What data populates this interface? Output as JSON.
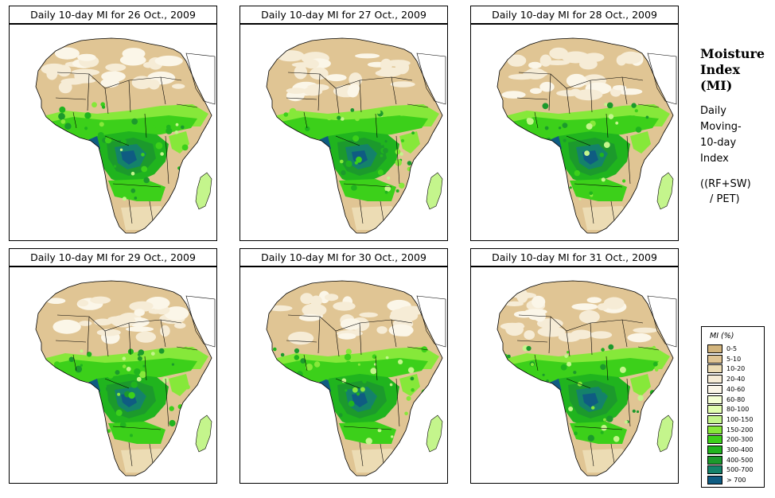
{
  "panels": [
    {
      "title": "Daily 10-day MI for  26 Oct., 2009"
    },
    {
      "title": "Daily 10-day MI for  27 Oct., 2009"
    },
    {
      "title": "Daily 10-day MI for  28 Oct., 2009"
    },
    {
      "title": "Daily 10-day MI for  29 Oct., 2009"
    },
    {
      "title": "Daily 10-day MI for  30 Oct., 2009"
    },
    {
      "title": "Daily 10-day MI for  31 Oct., 2009"
    }
  ],
  "sidebar": {
    "title_lines": [
      "Moisture",
      "Index",
      "(MI)"
    ],
    "subtitle_lines": [
      "Daily",
      "Moving-",
      "10-day",
      "Index"
    ],
    "formula_lines": [
      "((RF+SW)",
      "/ PET)"
    ]
  },
  "legend": {
    "title": "MI (%)",
    "items": [
      {
        "label": "0-5",
        "color": "#d2b47c"
      },
      {
        "label": "5-10",
        "color": "#e0c594"
      },
      {
        "label": "10-20",
        "color": "#ecdcb4"
      },
      {
        "label": "20-40",
        "color": "#f6ecd6"
      },
      {
        "label": "40-60",
        "color": "#fbf6e8"
      },
      {
        "label": "60-80",
        "color": "#f4ffd4"
      },
      {
        "label": "80-100",
        "color": "#e2ffb0"
      },
      {
        "label": "100-150",
        "color": "#c4f58c"
      },
      {
        "label": "150-200",
        "color": "#86e83a"
      },
      {
        "label": "200-300",
        "color": "#3cd01a"
      },
      {
        "label": "300-400",
        "color": "#20b41e"
      },
      {
        "label": "400-500",
        "color": "#1c9a2c"
      },
      {
        "label": "500-700",
        "color": "#14826a"
      },
      {
        "label": "> 700",
        "color": "#0f5c82"
      }
    ]
  }
}
